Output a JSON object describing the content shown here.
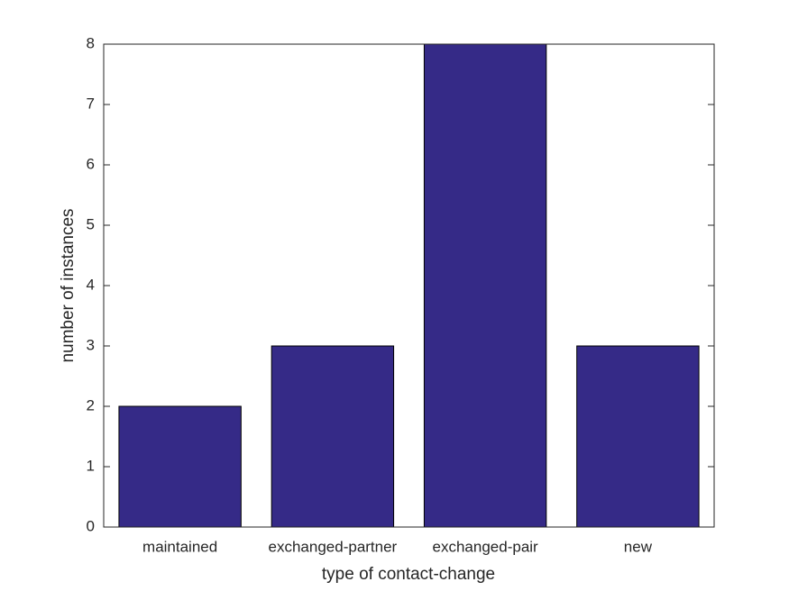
{
  "chart_data": {
    "type": "bar",
    "categories": [
      "maintained",
      "exchanged-partner",
      "exchanged-pair",
      "new"
    ],
    "values": [
      2,
      3,
      8,
      3
    ],
    "color": "#352a87",
    "x_label": "type of contact-change",
    "y_label": "number of instances",
    "ylim": [
      0,
      8
    ],
    "yticks": [
      0,
      1,
      2,
      3,
      4,
      5,
      6,
      7,
      8
    ],
    "grid": false
  }
}
